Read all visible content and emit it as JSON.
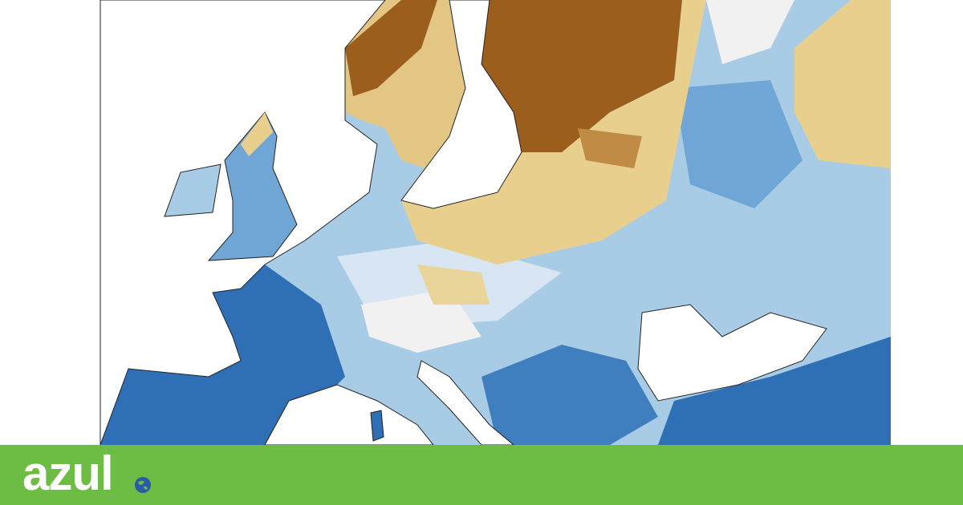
{
  "brand": {
    "name": "azul"
  }
}
